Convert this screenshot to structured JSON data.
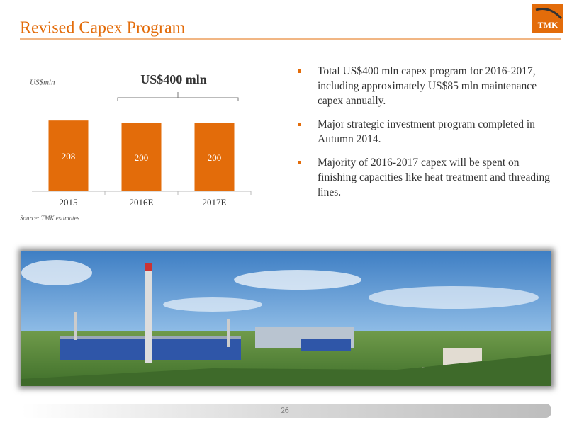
{
  "title": "Revised Capex Program",
  "logo": "TMK",
  "bullets": [
    "Total US$400 mln capex program for 2016-2017, including approximately US$85 mln maintenance capex annually.",
    "Major strategic investment program completed in Autumn 2014.",
    "Majority of 2016-2017 capex  will be spent on finishing capacities like heat treatment and threading lines."
  ],
  "page_number": "26",
  "chart_data": {
    "type": "bar",
    "y_label": "US$mln",
    "annotation": "US$400 mln",
    "source": "Source: TMK estimates",
    "categories": [
      "2015",
      "2016E",
      "2017E"
    ],
    "values": [
      208,
      200,
      200
    ],
    "color": "#e36c0a",
    "ylim": [
      0,
      250
    ]
  }
}
